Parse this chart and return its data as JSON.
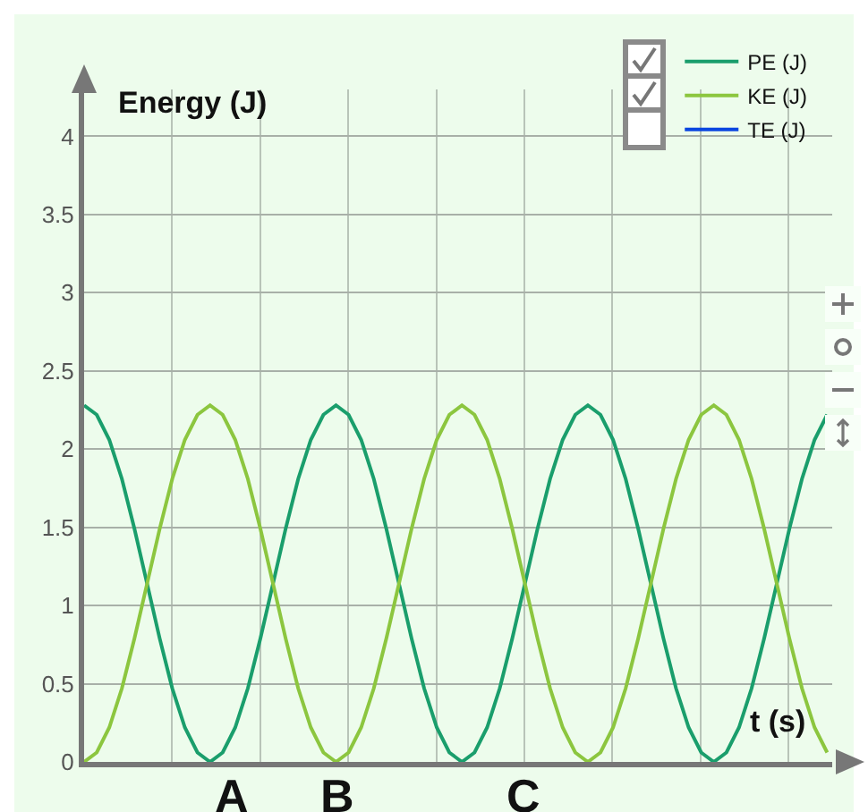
{
  "chart_data": {
    "type": "line",
    "xlabel": "t (s)",
    "ylabel": "Energy (J)",
    "categories": [
      null,
      null,
      null,
      null,
      null,
      null,
      null,
      null,
      null,
      null,
      null,
      null,
      null,
      null,
      null,
      null,
      null,
      null,
      null,
      null,
      null,
      null,
      null,
      null,
      null,
      null,
      null,
      null,
      null,
      null,
      null,
      null,
      null,
      null,
      null,
      null,
      null,
      null,
      null,
      null,
      null,
      null,
      null,
      null,
      null,
      null,
      null,
      null,
      null,
      null,
      null,
      null,
      null,
      null,
      null,
      null,
      null,
      null,
      null,
      null
    ],
    "series": [
      {
        "name": "PE (J)",
        "color": "#1a9e6c",
        "values": [
          2.28,
          2.22,
          2.06,
          1.81,
          1.49,
          1.14,
          0.79,
          0.47,
          0.22,
          0.06,
          0,
          0.06,
          0.22,
          0.47,
          0.79,
          1.14,
          1.49,
          1.81,
          2.06,
          2.22,
          2.28,
          2.22,
          2.06,
          1.81,
          1.49,
          1.14,
          0.79,
          0.47,
          0.22,
          0.06,
          0,
          0.06,
          0.22,
          0.47,
          0.79,
          1.14,
          1.49,
          1.81,
          2.06,
          2.22,
          2.28,
          2.22,
          2.06,
          1.81,
          1.49,
          1.14,
          0.79,
          0.47,
          0.22,
          0.06,
          0,
          0.06,
          0.22,
          0.47,
          0.79,
          1.14,
          1.49,
          1.81,
          2.06,
          2.22
        ]
      },
      {
        "name": "KE (J)",
        "color": "#8cc63f",
        "values": [
          0,
          0.06,
          0.22,
          0.47,
          0.79,
          1.14,
          1.49,
          1.81,
          2.06,
          2.22,
          2.28,
          2.22,
          2.06,
          1.81,
          1.49,
          1.14,
          0.79,
          0.47,
          0.22,
          0.06,
          0,
          0.06,
          0.22,
          0.47,
          0.79,
          1.14,
          1.49,
          1.81,
          2.06,
          2.22,
          2.28,
          2.22,
          2.06,
          1.81,
          1.49,
          1.14,
          0.79,
          0.47,
          0.22,
          0.06,
          0,
          0.06,
          0.22,
          0.47,
          0.79,
          1.14,
          1.49,
          1.81,
          2.06,
          2.22,
          2.28,
          2.22,
          2.06,
          1.81,
          1.49,
          1.14,
          0.79,
          0.47,
          0.22,
          0.06
        ]
      },
      {
        "name": "TE (J)",
        "color": "#0a46e0",
        "values": [
          null,
          null,
          null,
          null,
          null,
          null,
          null,
          null,
          null,
          null,
          null,
          null,
          null,
          null,
          null,
          null,
          null,
          null,
          null,
          null,
          null,
          null,
          null,
          null,
          null,
          null,
          null,
          null,
          null,
          null,
          null,
          null,
          null,
          null,
          null,
          null,
          null,
          null,
          null,
          null,
          null,
          null,
          null,
          null,
          null,
          null,
          null,
          null,
          null,
          null,
          null,
          null,
          null,
          null,
          null,
          null,
          null,
          null,
          null,
          null
        ]
      }
    ],
    "ylim": [
      0,
      4.3
    ],
    "yticks": [
      0,
      0.5,
      1,
      1.5,
      2,
      2.5,
      3,
      3.5,
      4
    ],
    "tick_labels": "y",
    "grid": true,
    "legend": "top right",
    "marker": "none",
    "line_style": "solid",
    "annotations": [
      "A",
      "B",
      "C"
    ]
  }
}
